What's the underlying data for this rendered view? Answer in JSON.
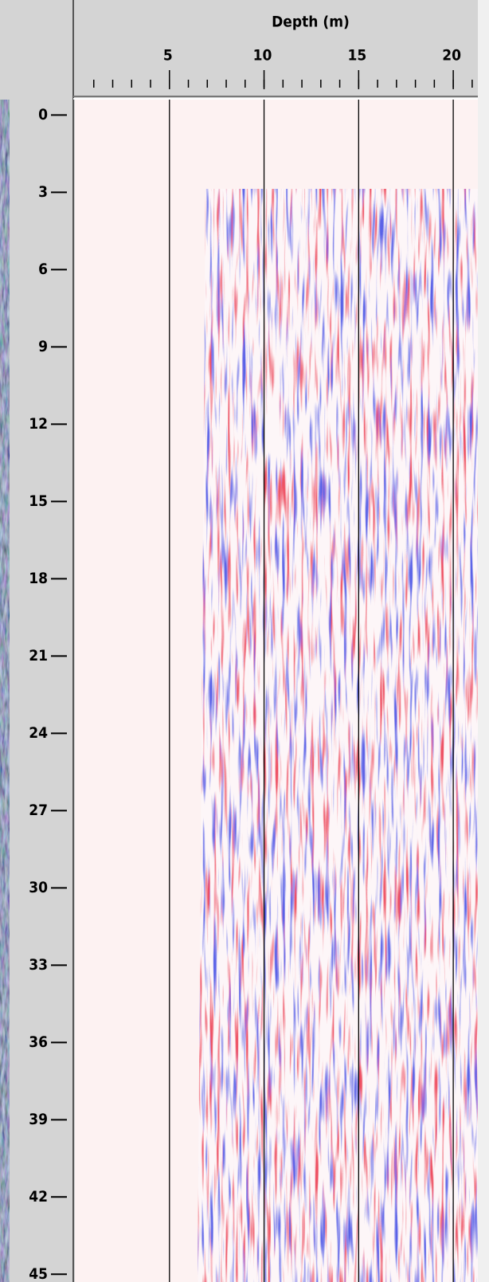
{
  "chart_data": {
    "type": "radargram",
    "xlabel": "Depth (m)",
    "xlim": [
      0,
      21.3
    ],
    "xticks": [
      5,
      10,
      15,
      20
    ],
    "ylim": [
      -0.6,
      45.3
    ],
    "yticks": [
      0,
      3,
      6,
      9,
      12,
      15,
      18,
      21,
      24,
      27,
      30,
      33,
      36,
      39,
      42,
      45
    ],
    "grid": true
  }
}
